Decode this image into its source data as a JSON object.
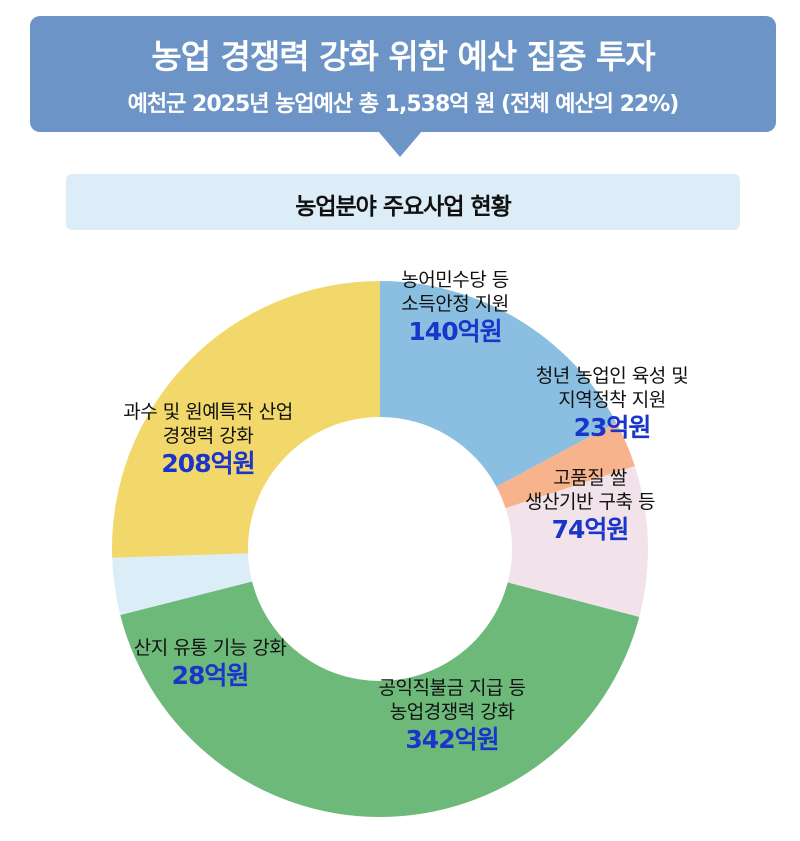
{
  "header": {
    "title": "농업 경쟁력 강화 위한 예산 집중 투자",
    "subtitle": "예천군 2025년 농업예산 총 1,538억 원 (전체 예산의 22%)"
  },
  "section": {
    "title": "농업분야 주요사업 현황"
  },
  "chart_data": {
    "type": "pie",
    "variant": "donut",
    "title": "농업분야 주요사업 현황",
    "unit": "억원",
    "slices": [
      {
        "lines": [
          "농어민수당 등",
          "소득안정 지원"
        ],
        "value": 140,
        "display": "140억원",
        "color": "#8bbfe2"
      },
      {
        "lines": [
          "청년 농업인 육성 및",
          "지역정착 지원"
        ],
        "value": 23,
        "display": "23억원",
        "color": "#f7b48c"
      },
      {
        "lines": [
          "고품질 쌀",
          "생산기반 구축 등"
        ],
        "value": 74,
        "display": "74억원",
        "color": "#f2e3ea"
      },
      {
        "lines": [
          "공익직불금 지급 등",
          "농업경쟁력 강화"
        ],
        "value": 342,
        "display": "342억원",
        "color": "#6db97a"
      },
      {
        "lines": [
          "산지 유통 기능 강화"
        ],
        "value": 28,
        "display": "28억원",
        "color": "#dbeef8"
      },
      {
        "lines": [
          "과수 및 원예특작 산업",
          "경쟁력 강화"
        ],
        "value": 208,
        "display": "208억원",
        "color": "#f2d86a"
      }
    ]
  }
}
